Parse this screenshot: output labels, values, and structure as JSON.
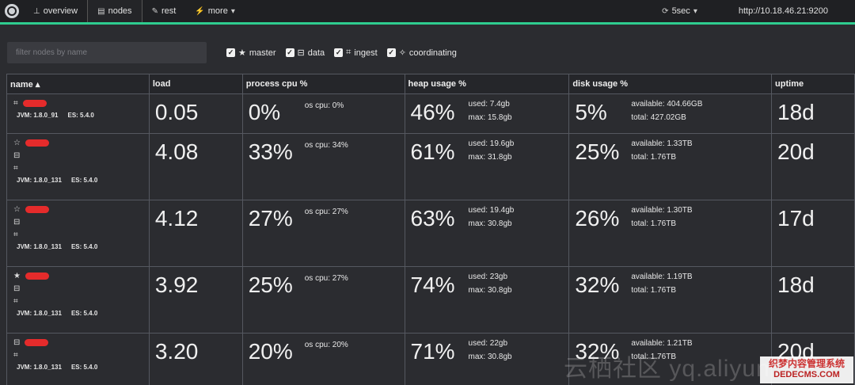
{
  "nav": {
    "overview": "overview",
    "nodes": "nodes",
    "rest": "rest",
    "more": "more",
    "refresh": "5sec",
    "url": "http://10.18.46.21:9200"
  },
  "filter": {
    "placeholder": "filter nodes by name"
  },
  "roles": [
    "master",
    "data",
    "ingest",
    "coordinating"
  ],
  "columns": {
    "name": "name",
    "load": "load",
    "cpu": "process cpu %",
    "heap": "heap usage %",
    "disk": "disk usage %",
    "uptime": "uptime"
  },
  "rows": [
    {
      "jvm": "JVM: 1.8.0_91",
      "es": "ES: 5.4.0",
      "load": "0.05",
      "cpu": "0%",
      "os_cpu": "os cpu: 0%",
      "heap": "46%",
      "heap_used": "used: 7.4gb",
      "heap_max": "max: 15.8gb",
      "disk": "5%",
      "disk_avail": "available: 404.66GB",
      "disk_total": "total: 427.02GB",
      "uptime": "18d"
    },
    {
      "jvm": "JVM: 1.8.0_131",
      "es": "ES: 5.4.0",
      "load": "4.08",
      "cpu": "33%",
      "os_cpu": "os cpu: 34%",
      "heap": "61%",
      "heap_used": "used: 19.6gb",
      "heap_max": "max: 31.8gb",
      "disk": "25%",
      "disk_avail": "available: 1.33TB",
      "disk_total": "total: 1.76TB",
      "uptime": "20d"
    },
    {
      "jvm": "JVM: 1.8.0_131",
      "es": "ES: 5.4.0",
      "load": "4.12",
      "cpu": "27%",
      "os_cpu": "os cpu: 27%",
      "heap": "63%",
      "heap_used": "used: 19.4gb",
      "heap_max": "max: 30.8gb",
      "disk": "26%",
      "disk_avail": "available: 1.30TB",
      "disk_total": "total: 1.76TB",
      "uptime": "17d"
    },
    {
      "jvm": "JVM: 1.8.0_131",
      "es": "ES: 5.4.0",
      "load": "3.92",
      "cpu": "25%",
      "os_cpu": "os cpu: 27%",
      "heap": "74%",
      "heap_used": "used: 23gb",
      "heap_max": "max: 30.8gb",
      "disk": "32%",
      "disk_avail": "available: 1.19TB",
      "disk_total": "total: 1.76TB",
      "uptime": "18d"
    },
    {
      "jvm": "JVM: 1.8.0_131",
      "es": "ES: 5.4.0",
      "load": "3.20",
      "cpu": "20%",
      "os_cpu": "os cpu: 20%",
      "heap": "71%",
      "heap_used": "used: 22gb",
      "heap_max": "max: 30.8gb",
      "disk": "32%",
      "disk_avail": "available: 1.21TB",
      "disk_total": "total: 1.76TB",
      "uptime": "20d"
    }
  ],
  "watermark": {
    "text": "云栖社区 yq.aliyun",
    "badge": "织梦内容管理系统",
    "badge_sub": "DEDECMS.COM"
  },
  "colors": {
    "accent": "#2ecc8f",
    "redaction": "#e52b2b",
    "background": "#2b2c30"
  }
}
